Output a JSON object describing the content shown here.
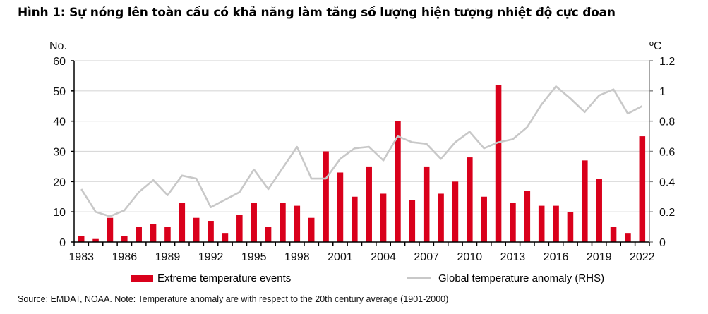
{
  "title": "Hình 1: Sự nóng lên toàn cầu có khả năng làm tăng số lượng hiện tượng nhiệt độ cực đoan",
  "source": "Source: EMDAT, NOAA.  Note: Temperature anomaly are with respect to the 20th century average (1901-2000)",
  "colors": {
    "bar": "#d9001b",
    "line": "#c8c8c8",
    "grid": "#d9d9d9",
    "axis": "#000000"
  },
  "chart_data": {
    "type": "bar",
    "title": "Hình 1: Sự nóng lên toàn cầu có khả năng làm tăng số lượng hiện tượng nhiệt độ cực đoan",
    "xlabel": "",
    "ylabel": "No.",
    "ylabel_right": "ºC",
    "ylim": [
      0,
      60
    ],
    "ylim_right": [
      0,
      1.2
    ],
    "yticks": [
      "0",
      "10",
      "20",
      "30",
      "40",
      "50",
      "60"
    ],
    "yticks_right": [
      "0",
      "0.2",
      "0.4",
      "0.6",
      "0.8",
      "1",
      "1.2"
    ],
    "xtick_labels": [
      "1983",
      "1986",
      "1989",
      "1992",
      "1995",
      "1998",
      "2001",
      "2004",
      "2007",
      "2010",
      "2013",
      "2016",
      "2019",
      "2022"
    ],
    "grid": true,
    "legend_position": "bottom",
    "categories": [
      1983,
      1984,
      1985,
      1986,
      1987,
      1988,
      1989,
      1990,
      1991,
      1992,
      1993,
      1994,
      1995,
      1996,
      1997,
      1998,
      1999,
      2000,
      2001,
      2002,
      2003,
      2004,
      2005,
      2006,
      2007,
      2008,
      2009,
      2010,
      2011,
      2012,
      2013,
      2014,
      2015,
      2016,
      2017,
      2018,
      2019,
      2020,
      2021,
      2022
    ],
    "series": [
      {
        "name": "Extreme temperature events",
        "type": "bar",
        "axis": "left",
        "values": [
          2,
          1,
          8,
          2,
          5,
          6,
          5,
          13,
          8,
          7,
          3,
          9,
          13,
          5,
          13,
          12,
          8,
          30,
          23,
          15,
          25,
          16,
          40,
          14,
          25,
          16,
          20,
          28,
          15,
          52,
          13,
          17,
          12,
          12,
          10,
          27,
          21,
          5,
          3,
          35
        ]
      },
      {
        "name": "Global temperature anomaly (RHS)",
        "type": "line",
        "axis": "right",
        "values": [
          0.35,
          0.2,
          0.17,
          0.21,
          0.33,
          0.41,
          0.31,
          0.44,
          0.42,
          0.23,
          0.28,
          0.33,
          0.48,
          0.35,
          0.49,
          0.63,
          0.42,
          0.42,
          0.55,
          0.62,
          0.63,
          0.54,
          0.7,
          0.66,
          0.65,
          0.55,
          0.66,
          0.73,
          0.62,
          0.66,
          0.68,
          0.76,
          0.91,
          1.03,
          0.95,
          0.86,
          0.97,
          1.01,
          0.85,
          0.9
        ]
      }
    ]
  }
}
